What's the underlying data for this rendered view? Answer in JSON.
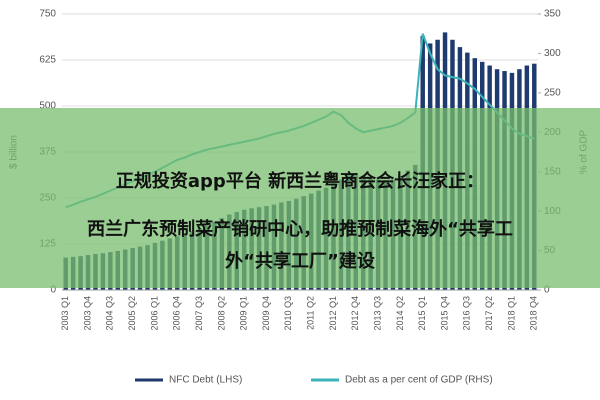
{
  "chart_data": {
    "type": "bar_line",
    "categories": [
      "2003 Q1",
      null,
      null,
      "2003 Q4",
      null,
      null,
      "2004 Q3",
      null,
      null,
      "2005 Q2",
      null,
      null,
      "2006 Q1",
      null,
      null,
      "2006 Q4",
      null,
      null,
      "2007 Q3",
      null,
      null,
      "2008 Q2",
      null,
      null,
      "2009 Q1",
      null,
      null,
      "2009 Q4",
      null,
      null,
      "2010 Q3",
      null,
      null,
      "2011 Q2",
      null,
      null,
      "2012 Q1",
      null,
      null,
      "2012 Q4",
      null,
      null,
      "2013 Q3",
      null,
      null,
      "2014 Q2",
      null,
      null,
      "2015 Q1",
      null,
      null,
      "2015 Q4",
      null,
      null,
      "2016 Q3",
      null,
      null,
      "2017 Q2",
      null,
      null,
      "2018 Q1",
      null,
      null,
      "2018 Q4"
    ],
    "series": [
      {
        "name": "NFC Debt (LHS)",
        "color": "#1f3a6e",
        "kind": "bar",
        "axis": "y",
        "values": [
          88,
          90,
          92,
          95,
          98,
          100,
          103,
          106,
          110,
          114,
          118,
          122,
          128,
          134,
          140,
          146,
          152,
          160,
          168,
          175,
          185,
          195,
          205,
          212,
          218,
          222,
          225,
          228,
          232,
          238,
          242,
          248,
          255,
          262,
          270,
          278,
          290,
          300,
          312,
          318,
          310,
          305,
          300,
          298,
          300,
          310,
          325,
          340,
          690,
          670,
          680,
          700,
          680,
          660,
          645,
          630,
          620,
          610,
          600,
          595,
          590,
          600,
          610,
          615
        ]
      },
      {
        "name": "Debt as a per cent of GDP (RHS)",
        "color": "#3bb3b8",
        "kind": "line",
        "axis": "y2",
        "values": [
          105,
          108,
          112,
          115,
          118,
          122,
          126,
          130,
          134,
          138,
          142,
          146,
          150,
          155,
          160,
          165,
          168,
          172,
          175,
          178,
          180,
          182,
          184,
          186,
          188,
          190,
          192,
          195,
          198,
          200,
          202,
          205,
          208,
          212,
          216,
          220,
          226,
          222,
          212,
          205,
          200,
          202,
          204,
          206,
          208,
          212,
          218,
          225,
          325,
          300,
          280,
          272,
          270,
          268,
          262,
          255,
          245,
          235,
          225,
          215,
          205,
          198,
          195,
          192
        ]
      }
    ],
    "ylabel": "$ billion",
    "y2label": "% of GDP",
    "ylim": [
      0,
      750
    ],
    "yticks": [
      0,
      125,
      250,
      375,
      500,
      625,
      750
    ],
    "y2lim": [
      0,
      350
    ],
    "y2ticks": [
      0,
      50,
      100,
      150,
      200,
      250,
      300,
      350
    ],
    "grid": true,
    "legend": "bottom"
  },
  "overlay": {
    "lines": [
      "正规投资app平台 新西兰粤商会会长汪家正：",
      "西兰广东预制菜产销研中心，助推预制菜海外“共享工",
      "外“共享工厂”建设"
    ]
  }
}
